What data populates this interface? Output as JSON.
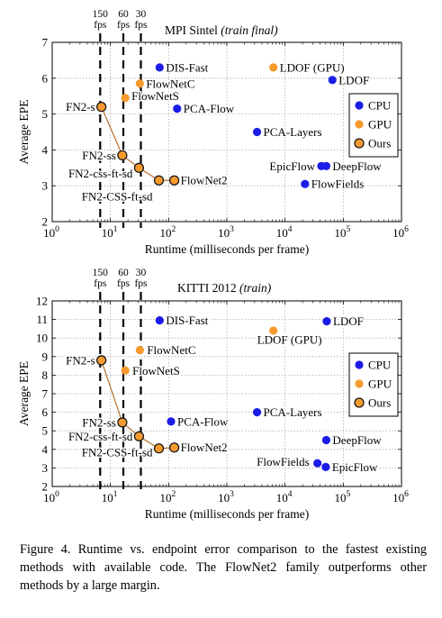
{
  "caption": "Figure 4. Runtime vs. endpoint error comparison to the fastest existing methods with available code. The FlowNet2 family outperforms other methods by a large margin.",
  "colors": {
    "CPU": "#1c1ce8",
    "GPU": "#f79a2e",
    "Ours": "#f79a2e",
    "ours_edge": "#1a1a1a",
    "grid": "#9a9a9a"
  },
  "chart_data": [
    {
      "type": "scatter",
      "title": "MPI Sintel",
      "title_note": "(train final)",
      "xlabel": "Runtime (milliseconds per frame)",
      "ylabel": "Average EPE",
      "xscale": "log",
      "xlim": [
        1,
        1000000
      ],
      "ylim": [
        2,
        7
      ],
      "x_ticks": [
        {
          "v": 1,
          "b": "10",
          "e": "0"
        },
        {
          "v": 10,
          "b": "10",
          "e": "1"
        },
        {
          "v": 100,
          "b": "10",
          "e": "2"
        },
        {
          "v": 1000,
          "b": "10",
          "e": "3"
        },
        {
          "v": 10000,
          "b": "10",
          "e": "4"
        },
        {
          "v": 100000,
          "b": "10",
          "e": "5"
        },
        {
          "v": 1000000,
          "b": "10",
          "e": "6"
        }
      ],
      "y_ticks": [
        "2",
        "3",
        "4",
        "5",
        "6",
        "7"
      ],
      "fps_markers": [
        {
          "fps_value": "150",
          "fps_unit": "fps",
          "ms": 6.67
        },
        {
          "fps_value": "60",
          "fps_unit": "fps",
          "ms": 16.67
        },
        {
          "fps_value": "30",
          "fps_unit": "fps",
          "ms": 33.33
        }
      ],
      "grid": true,
      "legend_position": "right",
      "legend": [
        "CPU",
        "GPU",
        "Ours"
      ],
      "series": [
        {
          "name": "CPU",
          "points": [
            {
              "label": "DIS-Fast",
              "x": 70,
              "y": 6.3
            },
            {
              "label": "PCA-Flow",
              "x": 140,
              "y": 5.15
            },
            {
              "label": "PCA-Layers",
              "x": 3300,
              "y": 4.5
            },
            {
              "label": "LDOF",
              "x": 65000,
              "y": 5.95
            },
            {
              "label": "EpicFlow",
              "x": 42000,
              "y": 3.55
            },
            {
              "label": "DeepFlow",
              "x": 51000,
              "y": 3.55
            },
            {
              "label": "FlowFields",
              "x": 22000,
              "y": 3.05
            }
          ]
        },
        {
          "name": "GPU",
          "points": [
            {
              "label": "LDOF (GPU)",
              "x": 6300,
              "y": 6.3
            },
            {
              "label": "FlowNetC",
              "x": 32,
              "y": 5.85
            },
            {
              "label": "FlowNetS",
              "x": 18,
              "y": 5.45
            }
          ]
        },
        {
          "name": "Ours",
          "points": [
            {
              "label": "FN2-s",
              "x": 7,
              "y": 5.2
            },
            {
              "label": "FN2-ss",
              "x": 16,
              "y": 3.85
            },
            {
              "label": "FN2-css-ft-sd",
              "x": 31,
              "y": 3.5
            },
            {
              "label": "FN2-CSS-ft-sd",
              "x": 68,
              "y": 3.15
            },
            {
              "label": "FlowNet2",
              "x": 125,
              "y": 3.15
            }
          ]
        }
      ]
    },
    {
      "type": "scatter",
      "title": "KITTI 2012",
      "title_note": "(train)",
      "xlabel": "Runtime (milliseconds per frame)",
      "ylabel": "Average EPE",
      "xscale": "log",
      "xlim": [
        1,
        1000000
      ],
      "ylim": [
        2,
        12
      ],
      "x_ticks": [
        {
          "v": 1,
          "b": "10",
          "e": "0"
        },
        {
          "v": 10,
          "b": "10",
          "e": "1"
        },
        {
          "v": 100,
          "b": "10",
          "e": "2"
        },
        {
          "v": 1000,
          "b": "10",
          "e": "3"
        },
        {
          "v": 10000,
          "b": "10",
          "e": "4"
        },
        {
          "v": 100000,
          "b": "10",
          "e": "5"
        },
        {
          "v": 1000000,
          "b": "10",
          "e": "6"
        }
      ],
      "y_ticks": [
        "2",
        "3",
        "4",
        "5",
        "6",
        "7",
        "8",
        "9",
        "10",
        "11",
        "12"
      ],
      "fps_markers": [
        {
          "fps_value": "150",
          "fps_unit": "fps",
          "ms": 6.67
        },
        {
          "fps_value": "60",
          "fps_unit": "fps",
          "ms": 16.67
        },
        {
          "fps_value": "30",
          "fps_unit": "fps",
          "ms": 33.33
        }
      ],
      "grid": true,
      "legend_position": "right",
      "legend": [
        "CPU",
        "GPU",
        "Ours"
      ],
      "series": [
        {
          "name": "CPU",
          "points": [
            {
              "label": "DIS-Fast",
              "x": 70,
              "y": 10.95
            },
            {
              "label": "LDOF",
              "x": 52000,
              "y": 10.9
            },
            {
              "label": "PCA-Flow",
              "x": 110,
              "y": 5.5
            },
            {
              "label": "PCA-Layers",
              "x": 3300,
              "y": 6.0
            },
            {
              "label": "DeepFlow",
              "x": 51000,
              "y": 4.5
            },
            {
              "label": "FlowFields",
              "x": 36000,
              "y": 3.25
            },
            {
              "label": "EpicFlow",
              "x": 50000,
              "y": 3.05
            }
          ]
        },
        {
          "name": "GPU",
          "points": [
            {
              "label": "LDOF (GPU)",
              "x": 6300,
              "y": 10.4
            },
            {
              "label": "FlowNetC",
              "x": 32,
              "y": 9.35
            },
            {
              "label": "FlowNetS",
              "x": 18,
              "y": 8.25
            }
          ]
        },
        {
          "name": "Ours",
          "points": [
            {
              "label": "FN2-s",
              "x": 7,
              "y": 8.8
            },
            {
              "label": "FN2-ss",
              "x": 16,
              "y": 5.45
            },
            {
              "label": "FN2-css-ft-sd",
              "x": 31,
              "y": 4.7
            },
            {
              "label": "FN2-CSS-ft-sd",
              "x": 68,
              "y": 4.05
            },
            {
              "label": "FlowNet2",
              "x": 125,
              "y": 4.1
            }
          ]
        }
      ]
    }
  ]
}
